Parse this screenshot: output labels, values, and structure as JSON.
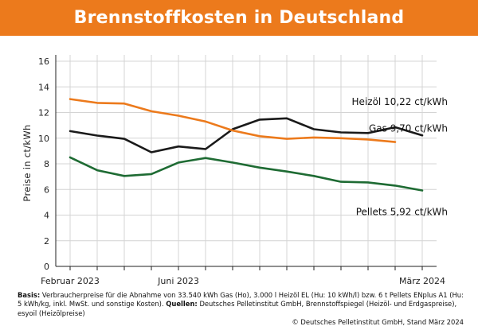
{
  "header": {
    "title": "Brennstoffkosten in Deutschland"
  },
  "colors": {
    "header_bg": "#ec7a1c",
    "heizoel": "#1a1a1a",
    "gas": "#ec7a1c",
    "pellets": "#1e6b33",
    "grid": "#d4d4d4"
  },
  "chart_data": {
    "type": "line",
    "title": "Brennstoffkosten in Deutschland",
    "xlabel": "",
    "ylabel": "Preise in ct/kWh",
    "ylim": [
      0,
      16
    ],
    "yticks": [
      0,
      2,
      4,
      6,
      8,
      10,
      12,
      14,
      16
    ],
    "grid": true,
    "x": [
      "2023-02",
      "2023-03",
      "2023-04",
      "2023-05",
      "2023-06",
      "2023-07",
      "2023-08",
      "2023-09",
      "2023-10",
      "2023-11",
      "2023-12",
      "2024-01",
      "2024-02",
      "2024-03"
    ],
    "xtick_labels": [
      {
        "index": 0,
        "label": "Februar 2023"
      },
      {
        "index": 4,
        "label": "Juni 2023"
      },
      {
        "index": 13,
        "label": "März 2024"
      }
    ],
    "series": [
      {
        "name": "Heizöl",
        "label": "Heizöl 10,22 ct/kWh",
        "color": "#1a1a1a",
        "values": [
          10.55,
          10.2,
          9.95,
          8.9,
          9.35,
          9.15,
          10.7,
          11.45,
          11.55,
          10.7,
          10.45,
          10.4,
          10.85,
          10.22
        ]
      },
      {
        "name": "Gas",
        "label": "Gas 9,70 ct/kWh",
        "color": "#ec7a1c",
        "values": [
          13.05,
          12.75,
          12.7,
          12.1,
          11.75,
          11.3,
          10.6,
          10.15,
          9.95,
          10.05,
          10.0,
          9.9,
          9.7,
          null
        ]
      },
      {
        "name": "Pellets",
        "label": "Pellets 5,92 ct/kWh",
        "color": "#1e6b33",
        "values": [
          8.5,
          7.5,
          7.05,
          7.2,
          8.1,
          8.45,
          8.1,
          7.7,
          7.4,
          7.05,
          6.6,
          6.55,
          6.3,
          5.92
        ]
      }
    ]
  },
  "footer": {
    "basis_label": "Basis:",
    "basis_text": " Verbraucherpreise für die Abnahme von 33.540 kWh Gas (Ho), 3.000 l Heizöl EL (Hu: 10 kWh/l) bzw. 6 t Pellets ENplus A1 (Hu: 5 kWh/kg, inkl. MwSt. und sonstige Kosten).",
    "quellen_label": "Quellen:",
    "quellen_text": " Deutsches Pelletinstitut GmbH, Brennstoffspiegel (Heizöl- und Erdgaspreise), esyoil (Heizölpreise)",
    "copyright": "© Deutsches Pelletinstitut GmbH, Stand März 2024"
  }
}
